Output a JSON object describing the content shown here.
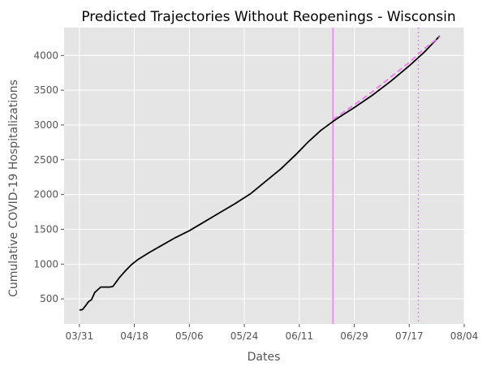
{
  "chart_data": {
    "type": "line",
    "title": "Predicted Trajectories Without Reopenings - Wisconsin",
    "xlabel": "Dates",
    "ylabel": "Cumulative COVID-19 Hospitalizations",
    "grid": true,
    "x_ticks": [
      "03/31",
      "04/18",
      "05/06",
      "05/24",
      "06/11",
      "06/29",
      "07/17",
      "08/04"
    ],
    "x_range": [
      "2020-03-26",
      "2020-08-04"
    ],
    "y_ticks": [
      500,
      1000,
      1500,
      2000,
      2500,
      3000,
      3500,
      4000
    ],
    "ylim": [
      140,
      4400
    ],
    "vertical_lines": [
      {
        "date": "2020-06-22",
        "style": "solid",
        "color": "#ee82ee"
      },
      {
        "date": "2020-07-20",
        "style": "dotted",
        "color": "#ee82ee"
      }
    ],
    "series": [
      {
        "style": "solid",
        "color": "#000000",
        "points": [
          [
            "2020-03-31",
            340
          ],
          [
            "2020-04-01",
            345
          ],
          [
            "2020-04-02",
            400
          ],
          [
            "2020-04-03",
            460
          ],
          [
            "2020-04-04",
            490
          ],
          [
            "2020-04-05",
            590
          ],
          [
            "2020-04-06",
            630
          ],
          [
            "2020-04-07",
            670
          ],
          [
            "2020-04-08",
            670
          ],
          [
            "2020-04-09",
            670
          ],
          [
            "2020-04-10",
            670
          ],
          [
            "2020-04-11",
            680
          ],
          [
            "2020-04-12",
            740
          ],
          [
            "2020-04-13",
            800
          ],
          [
            "2020-04-15",
            900
          ],
          [
            "2020-04-17",
            990
          ],
          [
            "2020-04-19",
            1060
          ],
          [
            "2020-04-23",
            1170
          ],
          [
            "2020-04-27",
            1270
          ],
          [
            "2020-05-01",
            1370
          ],
          [
            "2020-05-06",
            1480
          ],
          [
            "2020-05-11",
            1610
          ],
          [
            "2020-05-16",
            1740
          ],
          [
            "2020-05-21",
            1870
          ],
          [
            "2020-05-26",
            2010
          ],
          [
            "2020-05-31",
            2190
          ],
          [
            "2020-06-05",
            2370
          ],
          [
            "2020-06-10",
            2580
          ],
          [
            "2020-06-14",
            2760
          ],
          [
            "2020-06-18",
            2920
          ],
          [
            "2020-06-22",
            3050
          ],
          [
            "2020-06-24",
            3110
          ],
          [
            "2020-06-29",
            3250
          ],
          [
            "2020-07-05",
            3430
          ],
          [
            "2020-07-11",
            3630
          ],
          [
            "2020-07-17",
            3850
          ],
          [
            "2020-07-22",
            4050
          ],
          [
            "2020-07-27",
            4280
          ]
        ]
      },
      {
        "style": "dashed",
        "color": "#ee82ee",
        "points": [
          [
            "2020-06-22",
            3080
          ],
          [
            "2020-06-29",
            3290
          ],
          [
            "2020-07-05",
            3480
          ],
          [
            "2020-07-11",
            3690
          ],
          [
            "2020-07-17",
            3900
          ],
          [
            "2020-07-22",
            4100
          ],
          [
            "2020-07-27",
            4270
          ]
        ]
      }
    ]
  }
}
